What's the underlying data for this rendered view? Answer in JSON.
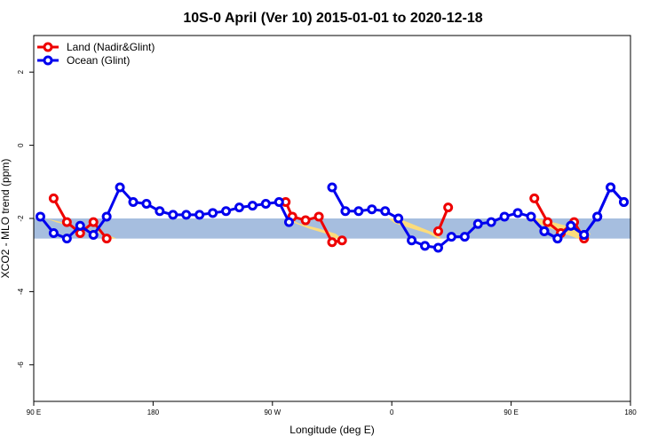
{
  "chart_data": {
    "type": "line",
    "title": "10S-0 April (Ver 10)   2015-01-01 to 2020-12-18",
    "xlabel": "Longitude (deg E)",
    "ylabel": "XCO2 - MLO trend (ppm)",
    "xlim": [
      0,
      900
    ],
    "ylim": [
      -7,
      3
    ],
    "x_ticks": [
      {
        "value": 0,
        "label": "90 E"
      },
      {
        "value": 180,
        "label": "180"
      },
      {
        "value": 360,
        "label": "90 W"
      },
      {
        "value": 540,
        "label": "0"
      },
      {
        "value": 720,
        "label": "90 E"
      },
      {
        "value": 900,
        "label": "180"
      }
    ],
    "y_ticks": [
      {
        "value": 2,
        "label": "2"
      },
      {
        "value": 0,
        "label": "0"
      },
      {
        "value": -2,
        "label": "-2"
      },
      {
        "value": -4,
        "label": "-4"
      },
      {
        "value": -6,
        "label": "-6"
      }
    ],
    "grid": false,
    "legend_position": "top-left",
    "band": {
      "y_min": -2.55,
      "y_max": -2.0,
      "color": "#a6bedf",
      "land_color": "#fcdc7b"
    },
    "land_patches": [
      {
        "x": [
          18,
          40,
          55,
          70,
          90,
          110,
          118,
          125,
          110,
          90,
          60,
          35,
          18
        ]
      },
      {
        "x": [
          380,
          395,
          415,
          440,
          455,
          465,
          455,
          430,
          400,
          385
        ]
      },
      {
        "x": [
          535,
          545,
          570,
          595,
          610,
          615,
          600,
          575,
          550
        ]
      },
      {
        "x": [
          740,
          760,
          780,
          800,
          820,
          835,
          840,
          820,
          790,
          760
        ]
      }
    ],
    "series": [
      {
        "name": "Land (Nadir&Glint)",
        "color": "#ee0000",
        "segments": [
          {
            "x": [
              30,
              50,
              70,
              90,
              110
            ],
            "y": [
              -1.45,
              -2.1,
              -2.4,
              -2.1,
              -2.55
            ]
          },
          {
            "x": [
              380,
              390,
              410,
              430,
              450,
              465
            ],
            "y": [
              -1.55,
              -1.95,
              -2.05,
              -1.95,
              -2.65,
              -2.6
            ]
          },
          {
            "x": [
              610,
              625
            ],
            "y": [
              -2.35,
              -1.7
            ]
          },
          {
            "x": [
              755,
              775,
              795,
              815,
              830
            ],
            "y": [
              -1.45,
              -2.1,
              -2.4,
              -2.1,
              -2.55
            ]
          }
        ]
      },
      {
        "name": "Ocean (Glint)",
        "color": "#0000ee",
        "segments": [
          {
            "x": [
              10,
              30,
              50,
              70,
              90,
              110,
              130,
              150,
              170,
              190,
              210,
              230,
              250,
              270,
              290,
              310,
              330,
              350,
              370,
              385
            ],
            "y": [
              -1.95,
              -2.4,
              -2.55,
              -2.2,
              -2.45,
              -1.95,
              -1.15,
              -1.55,
              -1.6,
              -1.8,
              -1.9,
              -1.9,
              -1.9,
              -1.85,
              -1.8,
              -1.7,
              -1.65,
              -1.6,
              -1.55,
              -2.1
            ]
          },
          {
            "x": [
              450,
              470,
              490,
              510,
              530,
              550,
              570,
              590,
              610,
              630,
              650,
              670,
              690,
              710,
              730,
              750,
              770,
              790,
              810,
              830,
              850,
              870,
              890
            ],
            "y": [
              -1.15,
              -1.8,
              -1.8,
              -1.75,
              -1.8,
              -2.0,
              -2.6,
              -2.75,
              -2.8,
              -2.5,
              -2.5,
              -2.15,
              -2.1,
              -1.95,
              -1.85,
              -1.95,
              -2.35,
              -2.55,
              -2.2,
              -2.45,
              -1.95,
              -1.15,
              -1.55
            ]
          },
          {
            "x": [
              770,
              790,
              810,
              830,
              850,
              870,
              890
            ],
            "y": [
              -2.35,
              -2.55,
              -2.2,
              -2.45,
              -1.95,
              -1.15,
              -1.55
            ]
          }
        ]
      }
    ]
  }
}
